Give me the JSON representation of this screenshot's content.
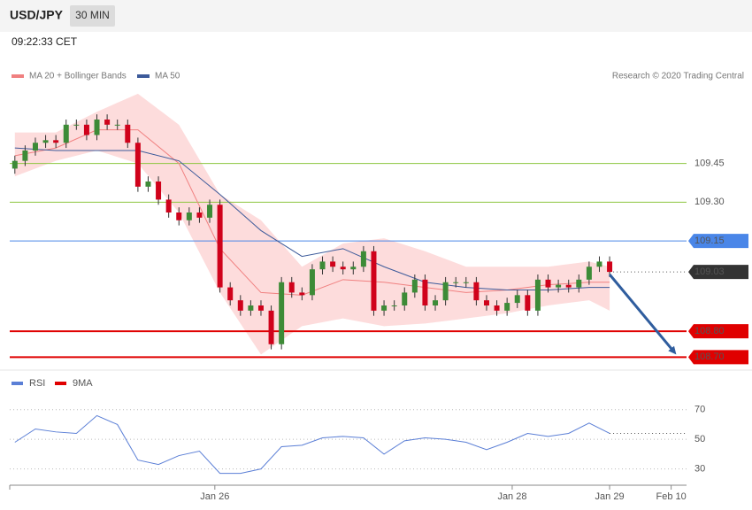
{
  "header": {
    "symbol": "USD/JPY",
    "timeframe": "30 MIN",
    "time": "09:22:33 CET"
  },
  "chart_data": [
    {
      "type": "candlestick",
      "legend": [
        "MA 20 + Bollinger Bands",
        "MA 50"
      ],
      "credit": "Research © 2020 Trading Central",
      "xlim": [
        0,
        132
      ],
      "ylim": [
        108.66,
        109.74
      ],
      "x": [
        1,
        3,
        5,
        7,
        9,
        11,
        13,
        15,
        17,
        19,
        21,
        23,
        25,
        27,
        29,
        31,
        33,
        35,
        37,
        39,
        41,
        43,
        45,
        47,
        49,
        51,
        53,
        55,
        57,
        59,
        61,
        63,
        65,
        67,
        69,
        71,
        73,
        75,
        77,
        79,
        81,
        83,
        85,
        87,
        89,
        91,
        93,
        95,
        97,
        99,
        101,
        103,
        105,
        107,
        109,
        111,
        113,
        115,
        117
      ],
      "open": [
        109.43,
        109.46,
        109.5,
        109.53,
        109.54,
        109.53,
        109.6,
        109.6,
        109.56,
        109.62,
        109.6,
        109.6,
        109.53,
        109.36,
        109.38,
        109.31,
        109.26,
        109.23,
        109.26,
        109.24,
        109.29,
        108.97,
        108.92,
        108.88,
        108.9,
        108.88,
        108.75,
        108.99,
        108.95,
        108.94,
        109.04,
        109.07,
        109.05,
        109.04,
        109.05,
        109.11,
        108.88,
        108.9,
        108.9,
        108.95,
        109.0,
        108.9,
        108.92,
        108.99,
        108.99,
        108.99,
        108.92,
        108.9,
        108.88,
        108.91,
        108.94,
        108.88,
        109.0,
        108.97,
        108.98,
        108.97,
        109.0,
        109.05,
        109.07
      ],
      "high": [
        109.48,
        109.52,
        109.55,
        109.56,
        109.56,
        109.62,
        109.62,
        109.62,
        109.64,
        109.64,
        109.62,
        109.62,
        109.55,
        109.4,
        109.4,
        109.33,
        109.28,
        109.28,
        109.28,
        109.31,
        109.31,
        108.99,
        108.94,
        108.92,
        108.92,
        108.9,
        109.01,
        109.01,
        108.97,
        109.06,
        109.09,
        109.09,
        109.07,
        109.07,
        109.13,
        109.13,
        108.92,
        108.92,
        108.97,
        109.02,
        109.02,
        108.94,
        109.01,
        109.01,
        109.01,
        109.01,
        108.94,
        108.92,
        108.93,
        108.96,
        108.96,
        109.02,
        109.02,
        109.0,
        109.0,
        109.02,
        109.07,
        109.09,
        109.09
      ],
      "low": [
        109.41,
        109.44,
        109.48,
        109.51,
        109.51,
        109.51,
        109.58,
        109.54,
        109.54,
        109.58,
        109.58,
        109.51,
        109.34,
        109.34,
        109.29,
        109.24,
        109.21,
        109.21,
        109.22,
        109.22,
        108.95,
        108.9,
        108.86,
        108.86,
        108.86,
        108.73,
        108.73,
        108.93,
        108.92,
        108.92,
        109.02,
        109.03,
        109.02,
        109.02,
        109.03,
        108.86,
        108.86,
        108.88,
        108.88,
        108.93,
        108.88,
        108.88,
        108.9,
        108.97,
        108.97,
        108.9,
        108.88,
        108.86,
        108.86,
        108.89,
        108.86,
        108.86,
        108.95,
        108.95,
        108.95,
        108.95,
        108.98,
        109.03,
        109.01
      ],
      "close": [
        109.46,
        109.5,
        109.53,
        109.54,
        109.53,
        109.6,
        109.6,
        109.56,
        109.62,
        109.6,
        109.6,
        109.53,
        109.36,
        109.38,
        109.31,
        109.26,
        109.23,
        109.26,
        109.24,
        109.29,
        108.97,
        108.92,
        108.88,
        108.9,
        108.88,
        108.75,
        108.99,
        108.95,
        108.94,
        109.04,
        109.07,
        109.05,
        109.04,
        109.05,
        109.11,
        108.88,
        108.9,
        108.9,
        108.95,
        109.0,
        108.9,
        108.92,
        108.99,
        108.99,
        108.99,
        108.92,
        108.9,
        108.88,
        108.91,
        108.94,
        108.88,
        109.0,
        108.97,
        108.98,
        108.97,
        109.0,
        109.05,
        109.07,
        109.03
      ],
      "up_color": "#3d8b37",
      "down_color": "#d0021b",
      "band_x": [
        1,
        9,
        17,
        25,
        33,
        41,
        49,
        57,
        65,
        73,
        81,
        89,
        97,
        105,
        113,
        117
      ],
      "band_upper": [
        109.57,
        109.57,
        109.65,
        109.72,
        109.6,
        109.33,
        109.23,
        109.05,
        109.14,
        109.16,
        109.11,
        109.05,
        109.05,
        109.05,
        109.07,
        109.05
      ],
      "band_lower": [
        109.4,
        109.46,
        109.5,
        109.45,
        109.26,
        108.95,
        108.71,
        108.82,
        108.85,
        108.82,
        108.83,
        108.85,
        108.87,
        108.9,
        108.92,
        108.88
      ],
      "band_color": "#fddcdc",
      "ma20": [
        109.48,
        109.51,
        109.58,
        109.58,
        109.45,
        109.12,
        108.95,
        108.94,
        109.0,
        108.99,
        108.97,
        108.95,
        108.96,
        108.98,
        108.99,
        108.99
      ],
      "ma20_color": "#f08080",
      "ma50": [
        109.51,
        109.5,
        109.5,
        109.5,
        109.46,
        109.33,
        109.19,
        109.09,
        109.12,
        109.05,
        108.99,
        108.97,
        108.96,
        108.96,
        108.97,
        108.97
      ],
      "ma50_color": "#3c5a9a",
      "levels": [
        {
          "value": 109.45,
          "color": "#8dc63f",
          "tag": false
        },
        {
          "value": 109.3,
          "label": "109.30",
          "color": "#8dc63f",
          "tag": false
        },
        {
          "value": 109.15,
          "color": "#4a86e8",
          "tag": true
        },
        {
          "value": 108.8,
          "label": "108.80",
          "color": "#e00000",
          "tag": true
        },
        {
          "value": 108.7,
          "label": "108.70",
          "color": "#e00000",
          "tag": true
        }
      ],
      "last_price": 109.03,
      "arrow": {
        "x": [
          117,
          130
        ],
        "y": [
          109.02,
          108.71
        ],
        "color": "#2f5d9e"
      }
    },
    {
      "type": "line",
      "legend": [
        {
          "name": "RSI",
          "color": "#5b7fd6"
        },
        {
          "name": "9MA",
          "color": "#e00000"
        }
      ],
      "xlim": [
        0,
        132
      ],
      "ylim": [
        19,
        83
      ],
      "yticks": [
        30,
        50,
        70
      ],
      "x": [
        1,
        5,
        9,
        13,
        17,
        21,
        25,
        29,
        33,
        37,
        41,
        45,
        49,
        53,
        57,
        61,
        65,
        69,
        73,
        77,
        81,
        85,
        89,
        93,
        97,
        101,
        105,
        109,
        113,
        117
      ],
      "values": [
        48,
        57,
        55,
        54,
        66,
        60,
        36,
        33,
        39,
        42,
        27,
        27,
        30,
        45,
        46,
        51,
        52,
        51,
        40,
        49,
        51,
        50,
        48,
        43,
        48,
        54,
        52,
        54,
        61,
        54
      ],
      "color": "#5b7fd6",
      "xticks": [
        {
          "value": 40,
          "label": "Jan 26"
        },
        {
          "value": 98,
          "label": "Jan 28"
        },
        {
          "value": 117,
          "label": "Jan 29"
        },
        {
          "value": 129,
          "label": "Feb 10"
        }
      ]
    }
  ]
}
